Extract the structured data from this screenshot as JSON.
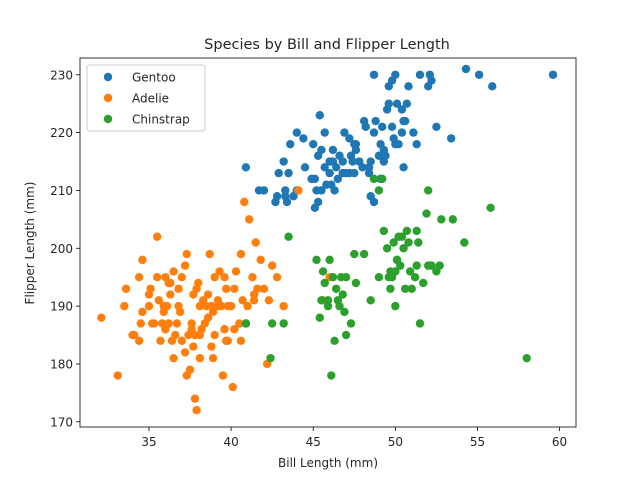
{
  "chart_data": {
    "type": "scatter",
    "title": "Species by Bill and Flipper Length",
    "xlabel": "Bill Length (mm)",
    "ylabel": "Flipper Length (mm)",
    "xlim": [
      30.8,
      61.0
    ],
    "ylim": [
      169.1,
      232.9
    ],
    "xticks": [
      35,
      40,
      45,
      50,
      55,
      60
    ],
    "yticks": [
      170,
      180,
      190,
      200,
      210,
      220,
      230
    ],
    "grid": false,
    "legend_position": "top-left",
    "series": [
      {
        "name": "Gentoo",
        "color": "#1f77b4",
        "points": [
          [
            40.9,
            214
          ],
          [
            41.7,
            210
          ],
          [
            42.0,
            210
          ],
          [
            42.7,
            208
          ],
          [
            42.8,
            209
          ],
          [
            42.9,
            213
          ],
          [
            43.2,
            215
          ],
          [
            43.3,
            209
          ],
          [
            43.4,
            208
          ],
          [
            43.5,
            213
          ],
          [
            43.6,
            218
          ],
          [
            43.8,
            209
          ],
          [
            44.0,
            220
          ],
          [
            44.4,
            219
          ],
          [
            44.9,
            212
          ],
          [
            45.0,
            218
          ],
          [
            45.1,
            212
          ],
          [
            45.2,
            210
          ],
          [
            45.3,
            208
          ],
          [
            45.5,
            210
          ],
          [
            45.5,
            217
          ],
          [
            45.7,
            214
          ],
          [
            45.8,
            211
          ],
          [
            46.0,
            213
          ],
          [
            46.1,
            211
          ],
          [
            46.2,
            215
          ],
          [
            46.4,
            214
          ],
          [
            46.6,
            216
          ],
          [
            46.8,
            213
          ],
          [
            46.8,
            215
          ],
          [
            47.0,
            213
          ],
          [
            47.2,
            213
          ],
          [
            47.3,
            216
          ],
          [
            47.5,
            218
          ],
          [
            47.6,
            218
          ],
          [
            47.8,
            215
          ],
          [
            48.0,
            214
          ],
          [
            48.1,
            222
          ],
          [
            48.2,
            221
          ],
          [
            48.4,
            213
          ],
          [
            48.5,
            215
          ],
          [
            48.7,
            220
          ],
          [
            48.8,
            222
          ],
          [
            49.0,
            216
          ],
          [
            49.1,
            212
          ],
          [
            49.3,
            215
          ],
          [
            49.4,
            216
          ],
          [
            49.5,
            224
          ],
          [
            49.6,
            225
          ],
          [
            49.8,
            221
          ],
          [
            50.0,
            218
          ],
          [
            50.1,
            225
          ],
          [
            50.2,
            218
          ],
          [
            50.4,
            224
          ],
          [
            50.5,
            222
          ],
          [
            50.7,
            225
          ],
          [
            50.8,
            228
          ],
          [
            51.1,
            220
          ],
          [
            51.3,
            218
          ],
          [
            51.5,
            230
          ],
          [
            52.1,
            230
          ],
          [
            52.2,
            229
          ],
          [
            52.5,
            221
          ],
          [
            53.4,
            219
          ],
          [
            54.3,
            231
          ],
          [
            55.1,
            230
          ],
          [
            55.9,
            228
          ],
          [
            59.6,
            230
          ],
          [
            44.5,
            214
          ],
          [
            45.4,
            223
          ],
          [
            45.7,
            220
          ],
          [
            46.1,
            215
          ],
          [
            46.5,
            212
          ],
          [
            47.5,
            213
          ],
          [
            48.4,
            214
          ],
          [
            49.1,
            218
          ],
          [
            49.2,
            221
          ],
          [
            49.6,
            228
          ],
          [
            50.0,
            230
          ],
          [
            50.5,
            214
          ],
          [
            49.8,
            229
          ],
          [
            45.3,
            216
          ],
          [
            46.9,
            220
          ],
          [
            47.6,
            217
          ],
          [
            48.5,
            209
          ],
          [
            50.4,
            220
          ],
          [
            46.3,
            210
          ],
          [
            45.1,
            207
          ],
          [
            43.3,
            210
          ],
          [
            44.0,
            210
          ],
          [
            48.7,
            230
          ],
          [
            49.3,
            217
          ],
          [
            50.6,
            222
          ],
          [
            52.0,
            228
          ],
          [
            46.0,
            215
          ],
          [
            47.2,
            219
          ],
          [
            48.7,
            208
          ],
          [
            49.9,
            219
          ],
          [
            46.2,
            217
          ],
          [
            47.4,
            215
          ]
        ]
      },
      {
        "name": "Adelie",
        "color": "#ff7f0e",
        "points": [
          [
            32.1,
            188
          ],
          [
            33.1,
            178
          ],
          [
            33.5,
            190
          ],
          [
            34.0,
            185
          ],
          [
            34.1,
            185
          ],
          [
            34.4,
            184
          ],
          [
            34.5,
            187
          ],
          [
            34.6,
            189
          ],
          [
            34.6,
            198
          ],
          [
            35.0,
            190
          ],
          [
            35.0,
            192
          ],
          [
            35.1,
            193
          ],
          [
            35.2,
            187
          ],
          [
            35.3,
            187
          ],
          [
            35.5,
            195
          ],
          [
            35.6,
            191
          ],
          [
            35.7,
            184
          ],
          [
            35.9,
            190
          ],
          [
            36.0,
            186
          ],
          [
            36.0,
            195
          ],
          [
            36.2,
            187
          ],
          [
            36.3,
            194
          ],
          [
            36.4,
            184
          ],
          [
            36.5,
            181
          ],
          [
            36.6,
            185
          ],
          [
            36.7,
            187
          ],
          [
            36.8,
            193
          ],
          [
            36.9,
            189
          ],
          [
            37.0,
            184
          ],
          [
            37.2,
            197
          ],
          [
            37.3,
            178
          ],
          [
            37.5,
            179
          ],
          [
            37.6,
            187
          ],
          [
            37.7,
            183
          ],
          [
            37.8,
            185
          ],
          [
            37.8,
            174
          ],
          [
            37.9,
            172
          ],
          [
            38.1,
            181
          ],
          [
            38.1,
            185
          ],
          [
            38.2,
            186
          ],
          [
            38.3,
            191
          ],
          [
            38.5,
            190
          ],
          [
            38.6,
            188
          ],
          [
            38.7,
            199
          ],
          [
            38.8,
            190
          ],
          [
            38.9,
            181
          ],
          [
            39.0,
            185
          ],
          [
            39.2,
            190
          ],
          [
            39.3,
            196
          ],
          [
            39.5,
            178
          ],
          [
            39.6,
            186
          ],
          [
            39.7,
            184
          ],
          [
            39.8,
            190
          ],
          [
            40.1,
            176
          ],
          [
            40.2,
            193
          ],
          [
            40.3,
            196
          ],
          [
            40.5,
            187
          ],
          [
            40.6,
            199
          ],
          [
            40.8,
            208
          ],
          [
            40.9,
            187
          ],
          [
            41.1,
            205
          ],
          [
            41.3,
            195
          ],
          [
            41.4,
            192
          ],
          [
            41.5,
            201
          ],
          [
            41.6,
            193
          ],
          [
            41.8,
            198
          ],
          [
            42.0,
            193
          ],
          [
            42.2,
            180
          ],
          [
            42.3,
            191
          ],
          [
            42.5,
            197
          ],
          [
            42.8,
            195
          ],
          [
            43.2,
            190
          ],
          [
            44.1,
            210
          ],
          [
            45.6,
            191
          ],
          [
            46.0,
            195
          ],
          [
            39.0,
            195
          ],
          [
            37.4,
            185
          ],
          [
            36.8,
            190
          ],
          [
            38.0,
            194
          ],
          [
            39.4,
            190
          ],
          [
            35.8,
            187
          ],
          [
            36.1,
            190
          ],
          [
            37.6,
            186
          ],
          [
            38.9,
            189
          ],
          [
            40.0,
            190
          ],
          [
            39.6,
            195
          ],
          [
            36.2,
            194
          ],
          [
            37.7,
            192
          ],
          [
            38.4,
            187
          ],
          [
            39.8,
            184
          ],
          [
            35.5,
            202
          ],
          [
            37.3,
            199
          ],
          [
            38.6,
            192
          ],
          [
            40.2,
            186
          ],
          [
            41.0,
            190
          ],
          [
            34.4,
            195
          ],
          [
            36.5,
            196
          ],
          [
            37.9,
            193
          ],
          [
            39.7,
            193
          ],
          [
            41.4,
            191
          ],
          [
            36.3,
            192
          ],
          [
            37.0,
            195
          ],
          [
            38.1,
            190
          ],
          [
            39.2,
            191
          ],
          [
            40.7,
            191
          ],
          [
            33.6,
            193
          ],
          [
            35.9,
            189
          ],
          [
            37.2,
            182
          ],
          [
            38.8,
            183
          ],
          [
            40.6,
            184
          ]
        ]
      },
      {
        "name": "Chinstrap",
        "color": "#2ca02c",
        "points": [
          [
            40.9,
            187
          ],
          [
            42.4,
            181
          ],
          [
            42.5,
            187
          ],
          [
            43.2,
            187
          ],
          [
            43.5,
            202
          ],
          [
            45.2,
            198
          ],
          [
            45.4,
            188
          ],
          [
            45.5,
            191
          ],
          [
            45.6,
            196
          ],
          [
            45.7,
            194
          ],
          [
            45.9,
            190
          ],
          [
            46.1,
            178
          ],
          [
            46.2,
            195
          ],
          [
            46.4,
            193
          ],
          [
            46.5,
            191
          ],
          [
            46.6,
            190
          ],
          [
            46.7,
            195
          ],
          [
            46.8,
            192
          ],
          [
            46.9,
            189
          ],
          [
            47.0,
            195
          ],
          [
            47.3,
            187
          ],
          [
            47.6,
            194
          ],
          [
            48.1,
            199
          ],
          [
            48.5,
            191
          ],
          [
            49.0,
            210
          ],
          [
            49.2,
            212
          ],
          [
            49.3,
            203
          ],
          [
            49.5,
            200
          ],
          [
            49.6,
            195
          ],
          [
            49.7,
            193
          ],
          [
            49.8,
            195
          ],
          [
            50.0,
            196
          ],
          [
            50.1,
            198
          ],
          [
            50.2,
            202
          ],
          [
            50.3,
            197
          ],
          [
            50.5,
            200
          ],
          [
            50.6,
            193
          ],
          [
            50.7,
            203
          ],
          [
            50.8,
            201
          ],
          [
            50.9,
            196
          ],
          [
            51.0,
            193
          ],
          [
            51.3,
            197
          ],
          [
            51.4,
            201
          ],
          [
            51.5,
            187
          ],
          [
            51.7,
            194
          ],
          [
            51.9,
            206
          ],
          [
            52.0,
            210
          ],
          [
            52.2,
            197
          ],
          [
            52.5,
            196
          ],
          [
            52.7,
            197
          ],
          [
            52.8,
            205
          ],
          [
            53.5,
            205
          ],
          [
            54.2,
            201
          ],
          [
            55.8,
            207
          ],
          [
            58.0,
            181
          ],
          [
            50.0,
            190
          ],
          [
            49.0,
            195
          ],
          [
            47.5,
            199
          ],
          [
            46.3,
            184
          ],
          [
            51.2,
            195
          ],
          [
            50.4,
            202
          ],
          [
            49.9,
            201
          ],
          [
            48.7,
            212
          ],
          [
            46.0,
            198
          ],
          [
            45.9,
            191
          ],
          [
            50.1,
            198
          ],
          [
            51.3,
            203
          ],
          [
            52.0,
            197
          ],
          [
            49.7,
            196
          ],
          [
            47.0,
            185
          ]
        ]
      }
    ]
  }
}
